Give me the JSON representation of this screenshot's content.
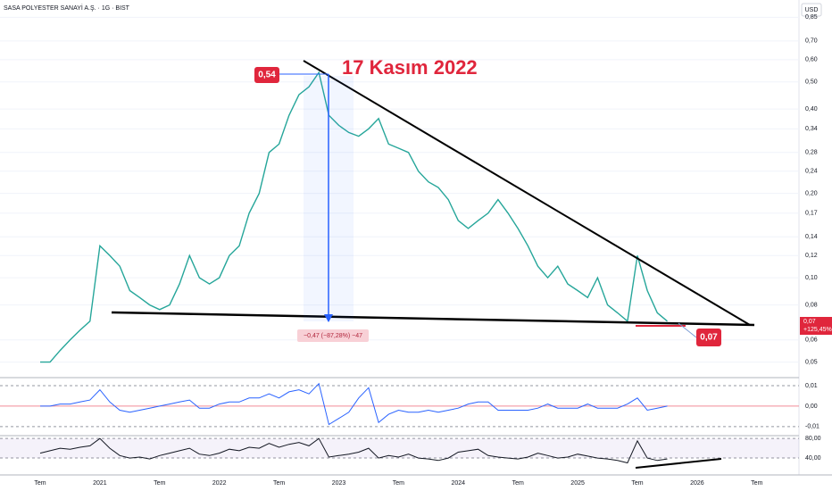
{
  "chart_data": [
    {
      "type": "line",
      "title": "SASA POLYESTER SANAYİ A.Ş. · 1G · BIST",
      "currency": "USD",
      "annotations": [
        "17 Kasım 2022",
        "0,54",
        "0,07",
        "−0,47 (−87,28%) −47"
      ],
      "last_price_label": "0,07",
      "change_label": "+125,45%",
      "log_scale": true,
      "color": "#26a69a",
      "categories": [
        "Tem",
        null,
        null,
        null,
        null,
        null,
        "2021",
        null,
        null,
        null,
        null,
        null,
        "Tem",
        null,
        null,
        null,
        null,
        null,
        "2022",
        null,
        null,
        null,
        null,
        null,
        "Tem",
        null,
        null,
        null,
        null,
        null,
        "2023",
        null,
        null,
        null,
        null,
        null,
        "Tem",
        null,
        null,
        null,
        null,
        null,
        "2024",
        null,
        null,
        null,
        null,
        null,
        "Tem",
        null,
        null,
        null,
        null,
        null,
        "2025",
        null,
        null,
        null,
        null,
        null,
        "Tem",
        null,
        null,
        null,
        null,
        null,
        "2026",
        null,
        null,
        null,
        null,
        null,
        "Tem"
      ],
      "values": [
        0.05,
        0.05,
        0.055,
        0.06,
        0.065,
        0.07,
        0.13,
        0.12,
        0.11,
        0.09,
        0.085,
        0.08,
        0.077,
        0.08,
        0.095,
        0.12,
        0.1,
        0.095,
        0.1,
        0.12,
        0.13,
        0.17,
        0.2,
        0.28,
        0.3,
        0.38,
        0.45,
        0.48,
        0.54,
        0.38,
        0.35,
        0.33,
        0.32,
        0.34,
        0.37,
        0.3,
        0.29,
        0.28,
        0.24,
        0.22,
        0.21,
        0.19,
        0.16,
        0.15,
        0.16,
        0.17,
        0.19,
        0.17,
        0.15,
        0.13,
        0.11,
        0.1,
        0.11,
        0.095,
        0.09,
        0.085,
        0.1,
        0.08,
        0.075,
        0.07,
        0.12,
        0.09,
        0.075,
        0.07,
        null,
        null,
        null,
        null,
        null,
        null,
        null,
        null,
        null
      ],
      "ylim": [
        0.045,
        0.98
      ],
      "yticks": [
        {
          "value": 0.05,
          "label": "0,05"
        },
        {
          "value": 0.06,
          "label": "0,06"
        },
        {
          "value": 0.08,
          "label": "0,08"
        },
        {
          "value": 0.1,
          "label": "0,10"
        },
        {
          "value": 0.12,
          "label": "0,12"
        },
        {
          "value": 0.14,
          "label": "0,14"
        },
        {
          "value": 0.17,
          "label": "0,17"
        },
        {
          "value": 0.2,
          "label": "0,20"
        },
        {
          "value": 0.24,
          "label": "0,24"
        },
        {
          "value": 0.28,
          "label": "0,28"
        },
        {
          "value": 0.34,
          "label": "0,34"
        },
        {
          "value": 0.4,
          "label": "0,40"
        },
        {
          "value": 0.5,
          "label": "0,50"
        },
        {
          "value": 0.6,
          "label": "0,60"
        },
        {
          "value": 0.7,
          "label": "0,70"
        },
        {
          "value": 0.85,
          "label": "0,85"
        }
      ]
    },
    {
      "type": "line",
      "color": "#2962ff",
      "values": [
        0,
        0,
        0.001,
        0.001,
        0.002,
        0.003,
        0.008,
        0.002,
        -0.002,
        -0.003,
        -0.002,
        -0.001,
        0,
        0.001,
        0.002,
        0.003,
        -0.001,
        -0.001,
        0.001,
        0.002,
        0.002,
        0.004,
        0.004,
        0.006,
        0.004,
        0.007,
        0.008,
        0.006,
        0.011,
        -0.009,
        -0.006,
        -0.003,
        0.004,
        0.009,
        -0.008,
        -0.004,
        -0.002,
        -0.003,
        -0.003,
        -0.002,
        -0.003,
        -0.002,
        -0.001,
        0.001,
        0.002,
        0.002,
        -0.002,
        -0.002,
        -0.002,
        -0.002,
        -0.001,
        0.001,
        -0.001,
        -0.001,
        -0.001,
        0.001,
        -0.001,
        -0.001,
        -0.001,
        0.001,
        0.004,
        -0.002,
        -0.001,
        0,
        null,
        null,
        null,
        null,
        null,
        null,
        null,
        null,
        null
      ],
      "ylim": [
        -0.014,
        0.0135
      ],
      "yticks": [
        {
          "value": -0.01,
          "label": "-0,01"
        },
        {
          "value": 0,
          "label": "0,00"
        },
        {
          "value": 0.01,
          "label": "0,01"
        }
      ]
    },
    {
      "type": "line",
      "color": "#131722",
      "values": [
        50,
        55,
        60,
        58,
        62,
        65,
        80,
        60,
        45,
        40,
        42,
        38,
        45,
        50,
        55,
        60,
        48,
        45,
        50,
        58,
        55,
        62,
        60,
        70,
        62,
        68,
        72,
        65,
        80,
        42,
        45,
        48,
        52,
        60,
        40,
        45,
        42,
        48,
        40,
        38,
        35,
        40,
        52,
        55,
        58,
        45,
        42,
        40,
        38,
        42,
        50,
        45,
        40,
        42,
        48,
        44,
        40,
        38,
        35,
        30,
        75,
        40,
        35,
        38,
        null,
        null,
        null,
        null,
        null,
        null,
        null,
        null,
        null
      ],
      "ylim": [
        9,
        84
      ],
      "yticks": [
        {
          "value": 40,
          "label": "40,00"
        },
        {
          "value": 80,
          "label": "80,00"
        }
      ]
    }
  ]
}
